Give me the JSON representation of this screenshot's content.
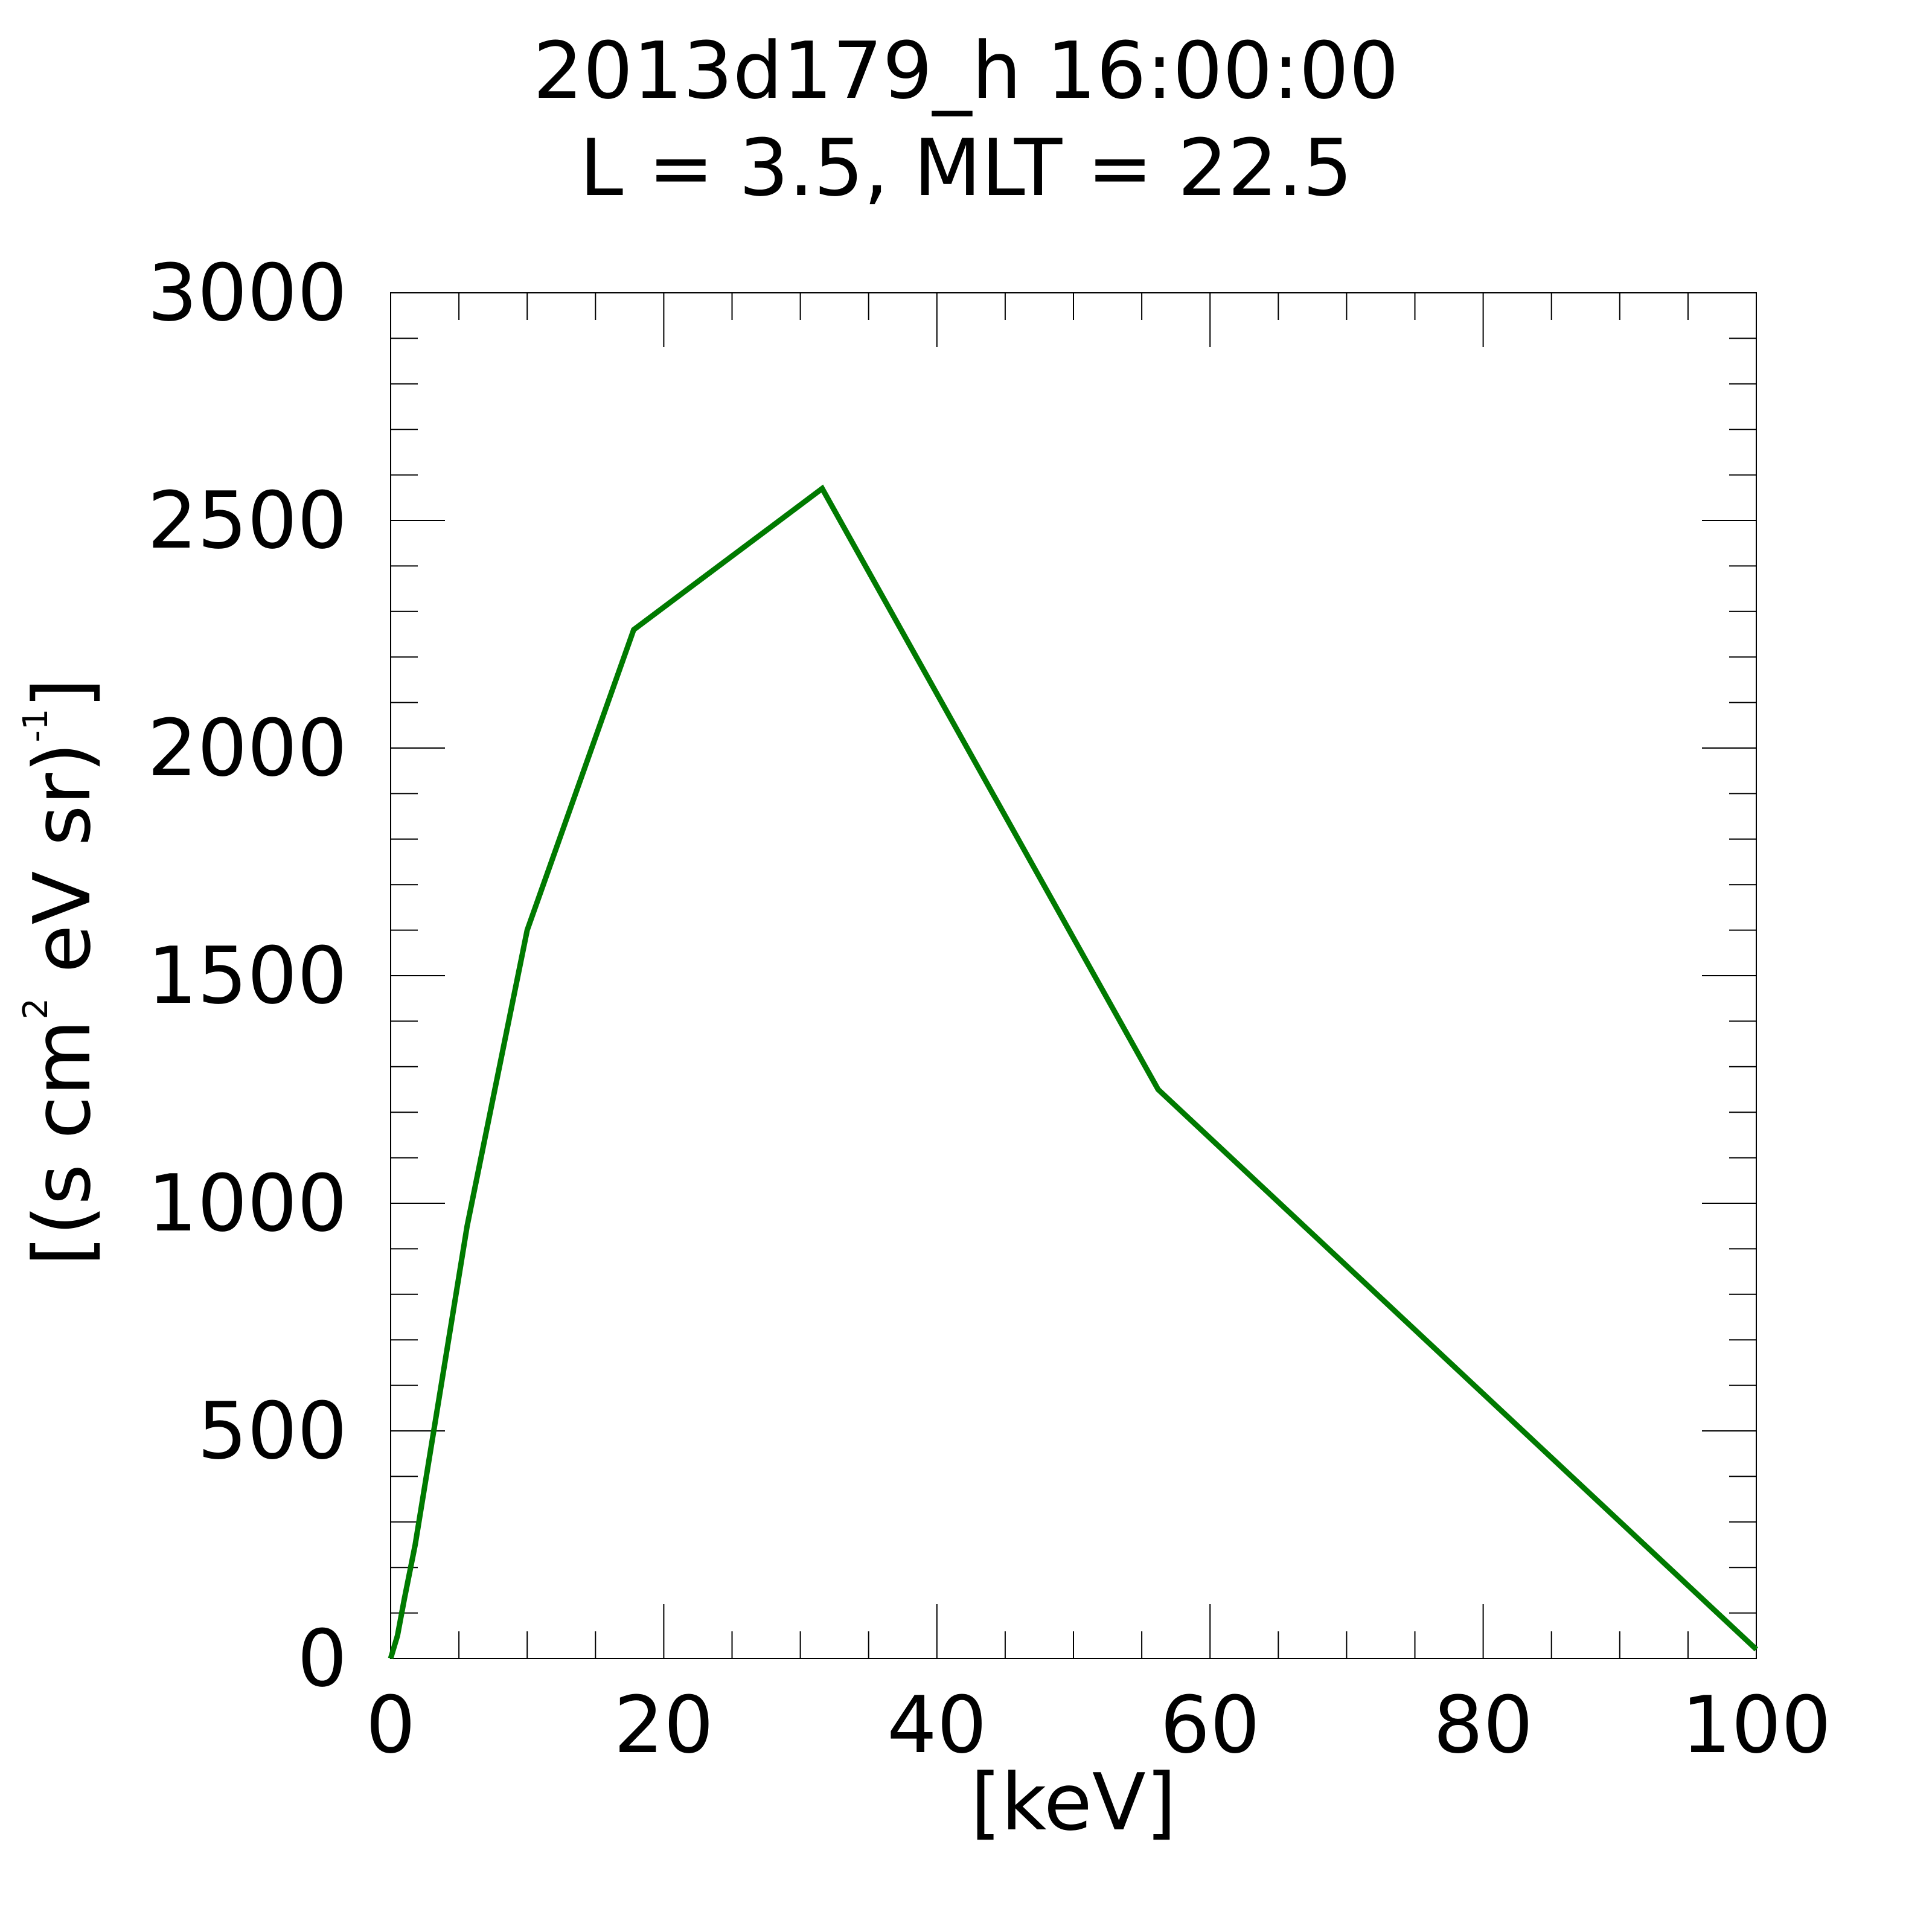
{
  "chart_data": {
    "type": "line",
    "title": "2013d179_h  16:00:00",
    "subtitle": "L = 3.5, MLT = 22.5",
    "xlabel": "[keV]",
    "ylabel": {
      "open": "[(s cm",
      "sup1": "2",
      "mid": " eV sr)",
      "sup2": "-1",
      "close": "]"
    },
    "xlim": [
      0,
      100
    ],
    "ylim": [
      0,
      3000
    ],
    "x_ticks": [
      "0",
      "20",
      "40",
      "60",
      "80",
      "100"
    ],
    "y_ticks": [
      "0",
      "500",
      "1000",
      "1500",
      "2000",
      "2500",
      "3000"
    ],
    "x_tick_values": [
      0,
      20,
      40,
      60,
      80,
      100
    ],
    "y_tick_values": [
      0,
      500,
      1000,
      1500,
      2000,
      2500,
      3000
    ],
    "x_minor_step": 5,
    "y_minor_step": 100,
    "grid": false,
    "series": [
      {
        "color": "#007a00",
        "x": [
          0,
          0.5,
          1.0,
          1.8,
          5.6,
          10.0,
          17.8,
          31.6,
          56.2,
          100
        ],
        "y": [
          0,
          50,
          130,
          250,
          950,
          1600,
          2260,
          2570,
          1250,
          20
        ]
      }
    ]
  }
}
